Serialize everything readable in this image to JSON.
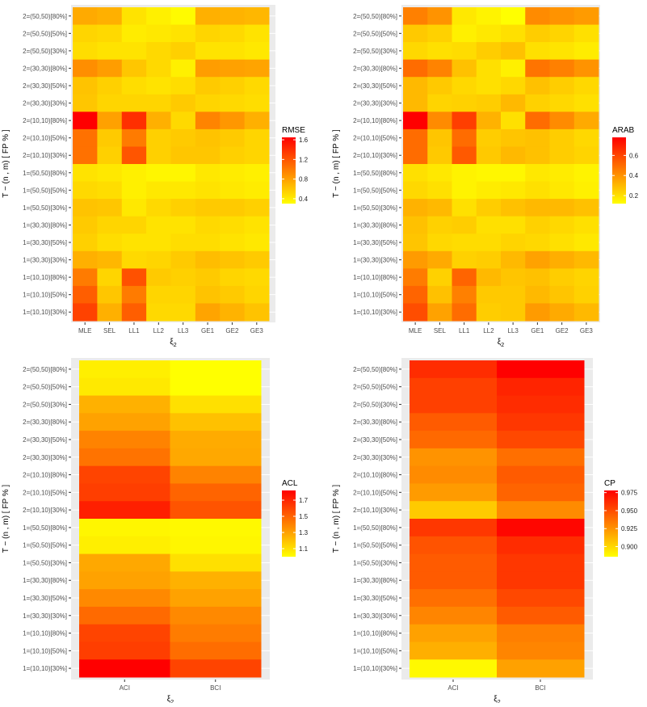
{
  "chart_data": [
    {
      "type": "heatmap",
      "legend_title": "RMSE",
      "xlabel": "ξ2",
      "ylabel": "T − (n , m) [ FP % ]",
      "legend_ticks": [
        "1.6",
        "1.2",
        "0.8",
        "0.4"
      ],
      "legend_tick_values": [
        1.6,
        1.2,
        0.8,
        0.4
      ],
      "limits": [
        0.3,
        1.65
      ],
      "legend_placement": "right",
      "x": [
        "MLE",
        "SEL",
        "LL1",
        "LL2",
        "LL3",
        "GE1",
        "GE2",
        "GE3"
      ],
      "y": [
        "2=(50,50)[80%]",
        "2=(50,50)[50%]",
        "2=(50,50)[30%]",
        "2=(30,30)[80%]",
        "2=(30,30)[50%]",
        "2=(30,30)[30%]",
        "2=(10,10)[80%]",
        "2=(10,10)[50%]",
        "2=(10,10)[30%]",
        "1=(50,50)[80%]",
        "1=(50,50)[50%]",
        "1=(50,50)[30%]",
        "1=(30,30)[80%]",
        "1=(30,30)[50%]",
        "1=(30,30)[30%]",
        "1=(10,10)[80%]",
        "1=(10,10)[50%]",
        "1=(10,10)[30%]"
      ],
      "values": [
        [
          0.75,
          0.72,
          0.45,
          0.38,
          0.32,
          0.72,
          0.7,
          0.68
        ],
        [
          0.52,
          0.5,
          0.4,
          0.42,
          0.45,
          0.52,
          0.5,
          0.45
        ],
        [
          0.48,
          0.45,
          0.45,
          0.5,
          0.55,
          0.45,
          0.45,
          0.42
        ],
        [
          0.9,
          0.82,
          0.6,
          0.5,
          0.38,
          0.82,
          0.8,
          0.78
        ],
        [
          0.62,
          0.55,
          0.48,
          0.45,
          0.48,
          0.58,
          0.55,
          0.5
        ],
        [
          0.6,
          0.52,
          0.52,
          0.52,
          0.58,
          0.52,
          0.5,
          0.48
        ],
        [
          1.65,
          0.8,
          1.4,
          0.72,
          0.5,
          0.95,
          0.85,
          0.72
        ],
        [
          1.05,
          0.58,
          1.0,
          0.55,
          0.58,
          0.62,
          0.58,
          0.52
        ],
        [
          1.05,
          0.55,
          1.2,
          0.55,
          0.6,
          0.6,
          0.55,
          0.52
        ],
        [
          0.45,
          0.42,
          0.38,
          0.35,
          0.35,
          0.42,
          0.4,
          0.38
        ],
        [
          0.5,
          0.48,
          0.38,
          0.42,
          0.42,
          0.45,
          0.42,
          0.4
        ],
        [
          0.62,
          0.6,
          0.42,
          0.5,
          0.55,
          0.58,
          0.58,
          0.55
        ],
        [
          0.58,
          0.52,
          0.52,
          0.45,
          0.45,
          0.5,
          0.48,
          0.45
        ],
        [
          0.55,
          0.48,
          0.45,
          0.45,
          0.48,
          0.48,
          0.45,
          0.42
        ],
        [
          0.72,
          0.68,
          0.5,
          0.52,
          0.58,
          0.65,
          0.62,
          0.58
        ],
        [
          1.0,
          0.52,
          1.22,
          0.58,
          0.55,
          0.58,
          0.52,
          0.5
        ],
        [
          1.15,
          0.6,
          1.0,
          0.52,
          0.52,
          0.62,
          0.58,
          0.52
        ],
        [
          1.3,
          0.72,
          1.15,
          0.5,
          0.5,
          0.78,
          0.7,
          0.62
        ]
      ]
    },
    {
      "type": "heatmap",
      "legend_title": "ARAB",
      "xlabel": "ξ2",
      "ylabel": "T − (n , m) [ FP % ]",
      "legend_ticks": [
        "0.6",
        "0.4",
        "0.2"
      ],
      "legend_tick_values": [
        0.6,
        0.4,
        0.2
      ],
      "limits": [
        0.12,
        0.78
      ],
      "legend_placement": "right",
      "x": [
        "MLE",
        "SEL",
        "LL1",
        "LL2",
        "LL3",
        "GE1",
        "GE2",
        "GE3"
      ],
      "y": [
        "2=(50,50)[80%]",
        "2=(50,50)[50%]",
        "2=(50,50)[30%]",
        "2=(30,30)[80%]",
        "2=(30,30)[50%]",
        "2=(30,30)[30%]",
        "2=(10,10)[80%]",
        "2=(10,10)[50%]",
        "2=(10,10)[30%]",
        "1=(50,50)[80%]",
        "1=(50,50)[50%]",
        "1=(50,50)[30%]",
        "1=(30,30)[80%]",
        "1=(30,30)[50%]",
        "1=(30,30)[30%]",
        "1=(10,10)[80%]",
        "1=(10,10)[50%]",
        "1=(10,10)[30%]"
      ],
      "values": [
        [
          0.45,
          0.4,
          0.18,
          0.15,
          0.12,
          0.42,
          0.4,
          0.38
        ],
        [
          0.26,
          0.24,
          0.16,
          0.18,
          0.2,
          0.25,
          0.23,
          0.2
        ],
        [
          0.22,
          0.2,
          0.21,
          0.25,
          0.28,
          0.2,
          0.19,
          0.17
        ],
        [
          0.5,
          0.44,
          0.28,
          0.2,
          0.16,
          0.48,
          0.45,
          0.4
        ],
        [
          0.3,
          0.26,
          0.22,
          0.2,
          0.22,
          0.28,
          0.25,
          0.22
        ],
        [
          0.3,
          0.23,
          0.24,
          0.25,
          0.3,
          0.24,
          0.22,
          0.2
        ],
        [
          0.78,
          0.42,
          0.62,
          0.32,
          0.2,
          0.5,
          0.42,
          0.34
        ],
        [
          0.5,
          0.27,
          0.5,
          0.25,
          0.27,
          0.28,
          0.25,
          0.22
        ],
        [
          0.5,
          0.26,
          0.55,
          0.26,
          0.3,
          0.28,
          0.25,
          0.23
        ],
        [
          0.2,
          0.18,
          0.15,
          0.14,
          0.14,
          0.18,
          0.17,
          0.15
        ],
        [
          0.22,
          0.2,
          0.15,
          0.17,
          0.18,
          0.2,
          0.18,
          0.16
        ],
        [
          0.32,
          0.3,
          0.2,
          0.25,
          0.28,
          0.3,
          0.3,
          0.28
        ],
        [
          0.28,
          0.24,
          0.25,
          0.2,
          0.2,
          0.24,
          0.22,
          0.2
        ],
        [
          0.27,
          0.22,
          0.21,
          0.21,
          0.23,
          0.22,
          0.2,
          0.18
        ],
        [
          0.38,
          0.34,
          0.24,
          0.25,
          0.3,
          0.36,
          0.33,
          0.3
        ],
        [
          0.46,
          0.24,
          0.52,
          0.3,
          0.27,
          0.28,
          0.25,
          0.23
        ],
        [
          0.52,
          0.28,
          0.45,
          0.26,
          0.26,
          0.3,
          0.27,
          0.24
        ],
        [
          0.58,
          0.36,
          0.5,
          0.25,
          0.26,
          0.38,
          0.34,
          0.3
        ]
      ]
    },
    {
      "type": "heatmap",
      "legend_title": "ACL",
      "xlabel": "ξ2",
      "ylabel": "T − (n , m) [ FP % ]",
      "legend_ticks": [
        "1.7",
        "1.5",
        "1.3",
        "1.1"
      ],
      "legend_tick_values": [
        1.7,
        1.5,
        1.3,
        1.1
      ],
      "limits": [
        1.0,
        1.82
      ],
      "legend_placement": "right",
      "x": [
        "ACI",
        "BCI"
      ],
      "y": [
        "2=(50,50)[80%]",
        "2=(50,50)[50%]",
        "2=(50,50)[30%]",
        "2=(30,30)[80%]",
        "2=(30,30)[50%]",
        "2=(30,30)[30%]",
        "2=(10,10)[80%]",
        "2=(10,10)[50%]",
        "2=(10,10)[30%]",
        "1=(50,50)[80%]",
        "1=(50,50)[50%]",
        "1=(50,50)[30%]",
        "1=(30,30)[80%]",
        "1=(30,30)[50%]",
        "1=(30,30)[30%]",
        "1=(10,10)[80%]",
        "1=(10,10)[50%]",
        "1=(10,10)[30%]"
      ],
      "values": [
        [
          1.05,
          1.0
        ],
        [
          1.07,
          1.0
        ],
        [
          1.25,
          1.1
        ],
        [
          1.3,
          1.2
        ],
        [
          1.4,
          1.27
        ],
        [
          1.45,
          1.28
        ],
        [
          1.6,
          1.4
        ],
        [
          1.62,
          1.5
        ],
        [
          1.72,
          1.55
        ],
        [
          1.03,
          1.02
        ],
        [
          1.05,
          1.03
        ],
        [
          1.28,
          1.1
        ],
        [
          1.3,
          1.25
        ],
        [
          1.38,
          1.3
        ],
        [
          1.48,
          1.38
        ],
        [
          1.6,
          1.42
        ],
        [
          1.62,
          1.47
        ],
        [
          1.82,
          1.6
        ]
      ]
    },
    {
      "type": "heatmap",
      "legend_title": "CP",
      "xlabel": "ξ2",
      "ylabel": "T − (n , m) [ FP % ]",
      "legend_ticks": [
        "0.975",
        "0.950",
        "0.925",
        "0.900"
      ],
      "legend_tick_values": [
        0.975,
        0.95,
        0.925,
        0.9
      ],
      "limits": [
        0.886,
        0.978
      ],
      "legend_placement": "right",
      "x": [
        "ACI",
        "BCI"
      ],
      "y": [
        "2=(50,50)[80%]",
        "2=(50,50)[50%]",
        "2=(50,50)[30%]",
        "2=(30,30)[80%]",
        "2=(30,30)[50%]",
        "2=(30,30)[30%]",
        "2=(10,10)[80%]",
        "2=(10,10)[50%]",
        "2=(10,10)[30%]",
        "1=(50,50)[80%]",
        "1=(50,50)[50%]",
        "1=(50,50)[30%]",
        "1=(30,30)[80%]",
        "1=(30,30)[50%]",
        "1=(30,30)[30%]",
        "1=(10,10)[80%]",
        "1=(10,10)[50%]",
        "1=(10,10)[30%]"
      ],
      "values": [
        [
          0.962,
          0.978
        ],
        [
          0.955,
          0.965
        ],
        [
          0.955,
          0.962
        ],
        [
          0.945,
          0.958
        ],
        [
          0.94,
          0.952
        ],
        [
          0.925,
          0.938
        ],
        [
          0.928,
          0.945
        ],
        [
          0.922,
          0.942
        ],
        [
          0.905,
          0.928
        ],
        [
          0.958,
          0.976
        ],
        [
          0.948,
          0.962
        ],
        [
          0.945,
          0.958
        ],
        [
          0.945,
          0.958
        ],
        [
          0.938,
          0.952
        ],
        [
          0.93,
          0.945
        ],
        [
          0.92,
          0.932
        ],
        [
          0.915,
          0.93
        ],
        [
          0.888,
          0.92
        ]
      ]
    }
  ],
  "colors": {
    "low": "#FFFF00",
    "high": "#FF0000",
    "panel": "#EBEBEB"
  }
}
